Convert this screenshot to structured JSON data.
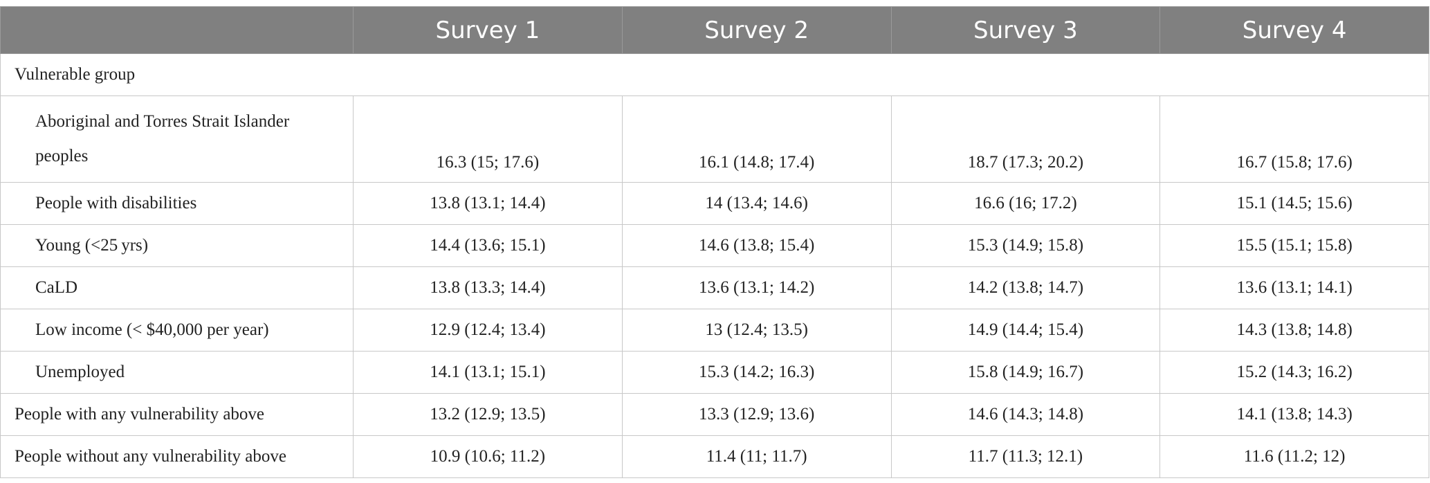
{
  "table": {
    "columns": [
      "Survey 1",
      "Survey 2",
      "Survey 3",
      "Survey 4"
    ],
    "section_label": "Vulnerable group",
    "section_rows": [
      [
        "Aboriginal and Torres Strait Islander peoples",
        "16.3 (15; 17.6)",
        "16.1 (14.8; 17.4)",
        "18.7 (17.3; 20.2)",
        "16.7 (15.8; 17.6)"
      ],
      [
        "People with disabilities",
        "13.8 (13.1; 14.4)",
        "14 (13.4; 14.6)",
        "16.6 (16; 17.2)",
        "15.1 (14.5; 15.6)"
      ],
      [
        "Young (<25 yrs)",
        "14.4 (13.6; 15.1)",
        "14.6 (13.8; 15.4)",
        "15.3 (14.9; 15.8)",
        "15.5 (15.1; 15.8)"
      ],
      [
        "CaLD",
        "13.8 (13.3; 14.4)",
        "13.6 (13.1; 14.2)",
        "14.2 (13.8; 14.7)",
        "13.6 (13.1; 14.1)"
      ],
      [
        "Low income (< $40,000 per year)",
        "12.9 (12.4; 13.4)",
        "13 (12.4; 13.5)",
        "14.9 (14.4; 15.4)",
        "14.3 (13.8; 14.8)"
      ],
      [
        "Unemployed",
        "14.1 (13.1; 15.1)",
        "15.3 (14.2; 16.3)",
        "15.8 (14.9; 16.7)",
        "15.2 (14.3; 16.2)"
      ]
    ],
    "rows": [
      [
        "People with any vulnerability above",
        "13.2 (12.9; 13.5)",
        "13.3 (12.9; 13.6)",
        "14.6 (14.3; 14.8)",
        "14.1 (13.8; 14.3)"
      ],
      [
        "People without any vulnerability above",
        "10.9 (10.6; 11.2)",
        "11.4 (11; 11.7)",
        "11.7 (11.3; 12.1)",
        "11.6 (11.2; 12)"
      ]
    ]
  }
}
